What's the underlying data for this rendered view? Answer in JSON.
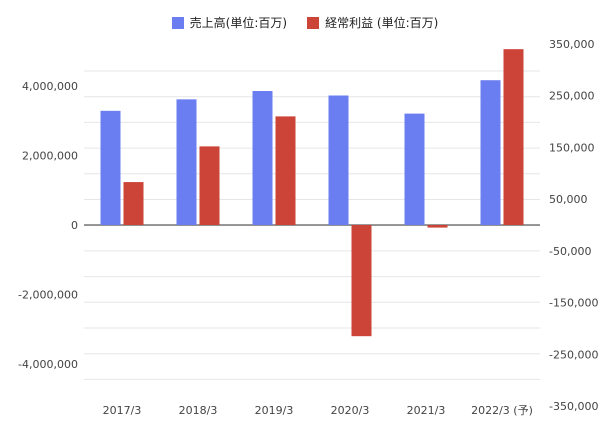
{
  "chart_data": {
    "type": "bar",
    "categories": [
      "2017/3",
      "2018/3",
      "2019/3",
      "2020/3",
      "2021/3",
      "2022/3 (予)"
    ],
    "series": [
      {
        "name": "売上高(単位:百万)",
        "axis": "left",
        "color": "#6a7ef2",
        "values": [
          3280000,
          3610000,
          3850000,
          3720000,
          3200000,
          4160000
        ]
      },
      {
        "name": "経常利益 (単位:百万)",
        "axis": "right",
        "color": "#cc4337",
        "values": [
          83000,
          152000,
          210000,
          -215000,
          -5000,
          340000
        ]
      }
    ],
    "left_axis": {
      "ylim": [
        -4600000,
        5200000
      ],
      "tick_labels": [
        "4,000,000",
        "2,000,000",
        "0",
        "-2,000,000",
        "-4,000,000"
      ]
    },
    "right_axis": {
      "ylim": [
        -350000,
        350000
      ],
      "tick_labels": [
        "350,000",
        "250,000",
        "150,000",
        "50,000",
        "-50,000",
        "-150,000",
        "-250,000",
        "-350,000"
      ]
    },
    "legend_position": "top",
    "grid": true
  }
}
